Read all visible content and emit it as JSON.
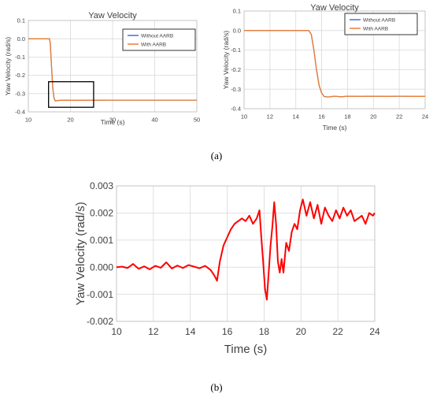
{
  "colors": {
    "without": "#4472c4",
    "with": "#ed7d31",
    "diff": "#ff0000",
    "zoom_box": "#000000"
  },
  "captions": {
    "a": "(a)",
    "b": "(b)"
  },
  "chart_data": [
    {
      "type": "line",
      "title": "Yaw Velocity",
      "xlabel": "Time (s)",
      "ylabel": "Yaw Velocity (rad/s)",
      "xlim": [
        10,
        50
      ],
      "ylim": [
        -0.4,
        0.1
      ],
      "xticks": [
        "10",
        "20",
        "30",
        "40",
        "50"
      ],
      "yticks": [
        "0.1",
        "0.0",
        "-0.1",
        "-0.2",
        "-0.3",
        "-0.4"
      ],
      "grid": true,
      "legend": "top-right",
      "legend_entries": [
        "Without AARB",
        "With AARB"
      ],
      "zoom_box": {
        "x": [
          14.8,
          25.5
        ],
        "y": [
          -0.375,
          -0.235
        ]
      },
      "series": [
        {
          "name": "Without AARB",
          "color": "#4472c4",
          "x": [
            10,
            15,
            15.2,
            15.5,
            15.8,
            16.1,
            16.4,
            17,
            18,
            20,
            30,
            40,
            50
          ],
          "y": [
            0,
            0,
            -0.02,
            -0.15,
            -0.27,
            -0.325,
            -0.34,
            -0.338,
            -0.336,
            -0.337,
            -0.336,
            -0.336,
            -0.336
          ]
        },
        {
          "name": "With AARB",
          "color": "#ed7d31",
          "x": [
            10,
            15,
            15.2,
            15.5,
            15.8,
            16.1,
            16.4,
            17,
            18,
            20,
            30,
            40,
            50
          ],
          "y": [
            0,
            0,
            -0.02,
            -0.15,
            -0.27,
            -0.325,
            -0.34,
            -0.338,
            -0.336,
            -0.337,
            -0.336,
            -0.336,
            -0.336
          ]
        }
      ]
    },
    {
      "type": "line",
      "title": "Yaw Velocity",
      "xlabel": "Time (s)",
      "ylabel": "Yaw Velocity (rad/s)",
      "xlim": [
        10,
        24
      ],
      "ylim": [
        -0.4,
        0.1
      ],
      "xticks": [
        "10",
        "12",
        "14",
        "16",
        "18",
        "20",
        "22",
        "24"
      ],
      "yticks": [
        "0.1",
        "0.0",
        "-0.1",
        "-0.2",
        "-0.3",
        "-0.4"
      ],
      "grid": true,
      "legend": "top-right",
      "legend_entries": [
        "Without AARB",
        "With AARB"
      ],
      "series": [
        {
          "name": "Without AARB",
          "color": "#4472c4",
          "x": [
            10,
            15,
            15.2,
            15.4,
            15.6,
            15.8,
            16.0,
            16.2,
            16.5,
            17,
            17.5,
            18,
            19,
            20,
            21,
            22,
            23,
            24
          ],
          "y": [
            0,
            0,
            -0.02,
            -0.1,
            -0.2,
            -0.28,
            -0.32,
            -0.338,
            -0.34,
            -0.336,
            -0.339,
            -0.336,
            -0.337,
            -0.336,
            -0.337,
            -0.336,
            -0.337,
            -0.337
          ]
        },
        {
          "name": "With AARB",
          "color": "#ed7d31",
          "x": [
            10,
            15,
            15.2,
            15.4,
            15.6,
            15.8,
            16.0,
            16.2,
            16.5,
            17,
            17.5,
            18,
            19,
            20,
            21,
            22,
            23,
            24
          ],
          "y": [
            0,
            0,
            -0.02,
            -0.1,
            -0.2,
            -0.28,
            -0.32,
            -0.338,
            -0.34,
            -0.336,
            -0.339,
            -0.336,
            -0.337,
            -0.336,
            -0.337,
            -0.336,
            -0.337,
            -0.337
          ]
        }
      ]
    },
    {
      "type": "line",
      "title": "",
      "xlabel": "Time (s)",
      "ylabel": "Yaw Velocity (rad/s)",
      "xlim": [
        10,
        24
      ],
      "ylim": [
        -0.002,
        0.003
      ],
      "xticks": [
        "10",
        "12",
        "14",
        "16",
        "18",
        "20",
        "22",
        "24"
      ],
      "yticks": [
        "0.003",
        "0.002",
        "0.001",
        "0.000",
        "-0.001",
        "-0.002"
      ],
      "grid": true,
      "legend": "none",
      "series": [
        {
          "color": "#ff0000",
          "x": [
            10,
            10.3,
            10.6,
            10.9,
            11.2,
            11.5,
            11.8,
            12.1,
            12.4,
            12.7,
            13.0,
            13.3,
            13.6,
            13.9,
            14.2,
            14.5,
            14.8,
            15.1,
            15.3,
            15.45,
            15.6,
            15.8,
            16.0,
            16.2,
            16.4,
            16.6,
            16.8,
            17.0,
            17.2,
            17.4,
            17.6,
            17.75,
            17.85,
            17.95,
            18.05,
            18.15,
            18.25,
            18.35,
            18.45,
            18.55,
            18.65,
            18.75,
            18.85,
            18.95,
            19.05,
            19.2,
            19.35,
            19.5,
            19.65,
            19.8,
            19.95,
            20.1,
            20.3,
            20.5,
            20.7,
            20.9,
            21.1,
            21.3,
            21.5,
            21.7,
            21.9,
            22.1,
            22.3,
            22.5,
            22.7,
            22.9,
            23.1,
            23.3,
            23.5,
            23.7,
            23.9,
            24.0
          ],
          "y": [
            0.0,
            2e-05,
            -3e-05,
            0.00012,
            -6e-05,
            3e-05,
            -8e-05,
            5e-05,
            -2e-05,
            0.00018,
            -5e-05,
            6e-05,
            -3e-05,
            8e-05,
            2e-05,
            -4e-05,
            5e-05,
            -0.0001,
            -0.0003,
            -0.0005,
            0.0002,
            0.0008,
            0.0011,
            0.0014,
            0.0016,
            0.0017,
            0.0018,
            0.0017,
            0.0019,
            0.0016,
            0.0018,
            0.0021,
            0.0011,
            0.0002,
            -0.0008,
            -0.0012,
            -0.0002,
            0.0008,
            0.0015,
            0.0024,
            0.0016,
            0.0002,
            -0.0002,
            0.0003,
            -0.0002,
            0.0009,
            0.0006,
            0.0013,
            0.0016,
            0.0014,
            0.0021,
            0.0025,
            0.0019,
            0.0024,
            0.0018,
            0.0023,
            0.0016,
            0.0022,
            0.0019,
            0.0017,
            0.0021,
            0.0018,
            0.0022,
            0.0019,
            0.0021,
            0.0017,
            0.0018,
            0.0019,
            0.0016,
            0.002,
            0.0019,
            0.002
          ]
        }
      ]
    }
  ]
}
